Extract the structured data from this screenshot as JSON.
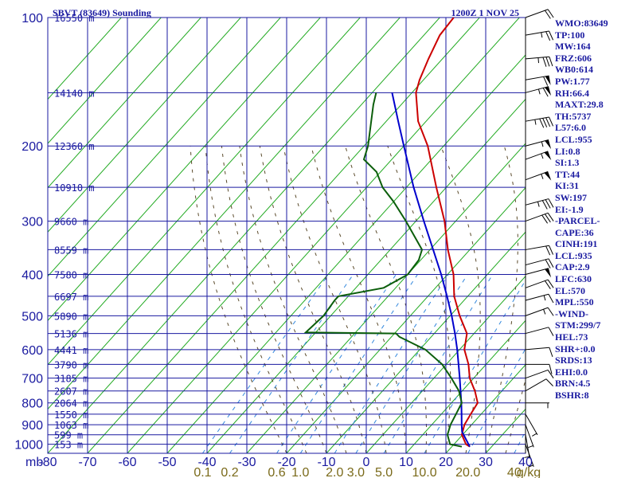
{
  "header": {
    "station": "SBVT (83649) Sounding",
    "time": "1200Z  1 NOV 25"
  },
  "colors": {
    "axes": "#1a1aa0",
    "temperature": "#cc0000",
    "dewpoint": "#0b5e0b",
    "parcel": "#0000cc",
    "dry_adiabat": "#22aa22",
    "isotherm": "#22aa22",
    "moist_adiabat": "#5a4a2a",
    "mixing_ratio": "#3388dd",
    "wind": "#000000"
  },
  "chart_data": {
    "type": "skew-t",
    "title": "SBVT (83649) Sounding",
    "valid_time": "1200Z  1 NOV 25",
    "xlabel": "mb",
    "pressure_levels": [
      100,
      200,
      300,
      400,
      500,
      600,
      700,
      800,
      900,
      1000
    ],
    "pressure_labels": [
      "100",
      "200",
      "300",
      "400",
      "500",
      "600",
      "700",
      "800",
      "900",
      "1000"
    ],
    "height_labels": [
      {
        "p": 100,
        "text": "16550 m"
      },
      {
        "p": 150,
        "text": "14140 m"
      },
      {
        "p": 200,
        "text": "12360 m"
      },
      {
        "p": 250,
        "text": "10910 m"
      },
      {
        "p": 300,
        "text": "9660 m"
      },
      {
        "p": 350,
        "text": "8559 m"
      },
      {
        "p": 400,
        "text": "7580 m"
      },
      {
        "p": 450,
        "text": "6697 m"
      },
      {
        "p": 500,
        "text": "5890 m"
      },
      {
        "p": 550,
        "text": "5136 m"
      },
      {
        "p": 600,
        "text": "4441 m"
      },
      {
        "p": 650,
        "text": "3790 m"
      },
      {
        "p": 700,
        "text": "3185 m"
      },
      {
        "p": 750,
        "text": "2607 m"
      },
      {
        "p": 800,
        "text": "2064 m"
      },
      {
        "p": 850,
        "text": "1550 m"
      },
      {
        "p": 900,
        "text": "1063 m"
      },
      {
        "p": 950,
        "text": "599 m"
      },
      {
        "p": 1000,
        "text": "153 m"
      }
    ],
    "temperature_ticks": [
      -80,
      -70,
      -60,
      -50,
      -40,
      -30,
      -20,
      -10,
      0,
      10,
      20,
      30,
      40
    ],
    "temperature_tick_labels": [
      "-80",
      "-70",
      "-60",
      "-50",
      "-40",
      "-30",
      "-20",
      "-10",
      "0",
      "10",
      "20",
      "30",
      "40"
    ],
    "mixing_ratio_labels": [
      {
        "text": "0.1",
        "w": 0.1
      },
      {
        "text": "0.2",
        "w": 0.2
      },
      {
        "text": "0.6",
        "w": 0.6
      },
      {
        "text": "1.0",
        "w": 1.0
      },
      {
        "text": "2.0",
        "w": 2.0
      },
      {
        "text": "3.0",
        "w": 3.0
      },
      {
        "text": "5.0",
        "w": 5.0
      },
      {
        "text": "10.0",
        "w": 10.0
      },
      {
        "text": "20.0",
        "w": 20.0
      },
      {
        "text": "40",
        "w": 40.0
      },
      {
        "text": "g/kg",
        "w": 80.0
      }
    ],
    "temperature_profile": [
      {
        "p": 1013,
        "t": 24.5
      },
      {
        "p": 1000,
        "t": 23.0
      },
      {
        "p": 950,
        "t": 19.8
      },
      {
        "p": 900,
        "t": 18.2
      },
      {
        "p": 850,
        "t": 17.4
      },
      {
        "p": 800,
        "t": 16.6
      },
      {
        "p": 750,
        "t": 13.2
      },
      {
        "p": 700,
        "t": 9.0
      },
      {
        "p": 650,
        "t": 5.6
      },
      {
        "p": 600,
        "t": 1.2
      },
      {
        "p": 550,
        "t": -1.8
      },
      {
        "p": 500,
        "t": -7.6
      },
      {
        "p": 450,
        "t": -13.4
      },
      {
        "p": 400,
        "t": -18.5
      },
      {
        "p": 350,
        "t": -25.5
      },
      {
        "p": 300,
        "t": -32.8
      },
      {
        "p": 250,
        "t": -42.5
      },
      {
        "p": 200,
        "t": -54.0
      },
      {
        "p": 175,
        "t": -62.0
      },
      {
        "p": 150,
        "t": -69.0
      },
      {
        "p": 140,
        "t": -71.0
      },
      {
        "p": 125,
        "t": -73.5
      },
      {
        "p": 110,
        "t": -76.0
      },
      {
        "p": 100,
        "t": -76.5
      }
    ],
    "dewpoint_profile": [
      {
        "p": 1013,
        "td": 22.5
      },
      {
        "p": 1000,
        "td": 19.0
      },
      {
        "p": 950,
        "td": 16.2
      },
      {
        "p": 900,
        "td": 14.7
      },
      {
        "p": 850,
        "td": 13.7
      },
      {
        "p": 800,
        "td": 12.6
      },
      {
        "p": 750,
        "td": 9.2
      },
      {
        "p": 700,
        "td": 4.4
      },
      {
        "p": 650,
        "td": -1.0
      },
      {
        "p": 600,
        "td": -8.6
      },
      {
        "p": 560,
        "td": -18.0
      },
      {
        "p": 550,
        "td": -19.6
      },
      {
        "p": 547,
        "td": -42.5
      },
      {
        "p": 500,
        "td": -41.8
      },
      {
        "p": 460,
        "td": -42.5
      },
      {
        "p": 450,
        "td": -42.5
      },
      {
        "p": 430,
        "td": -33.0
      },
      {
        "p": 400,
        "td": -30.0
      },
      {
        "p": 370,
        "td": -30.5
      },
      {
        "p": 350,
        "td": -32.0
      },
      {
        "p": 300,
        "td": -42.5
      },
      {
        "p": 270,
        "td": -50.0
      },
      {
        "p": 250,
        "td": -56.0
      },
      {
        "p": 230,
        "td": -61.0
      },
      {
        "p": 215,
        "td": -67.0
      },
      {
        "p": 200,
        "td": -69.0
      },
      {
        "p": 160,
        "td": -77.0
      },
      {
        "p": 150,
        "td": -79.0
      }
    ],
    "parcel_profile": [
      {
        "p": 1013,
        "t": 24.5
      },
      {
        "p": 935,
        "t": 19.2
      },
      {
        "p": 900,
        "t": 17.5
      },
      {
        "p": 850,
        "t": 15.1
      },
      {
        "p": 800,
        "t": 12.5
      },
      {
        "p": 750,
        "t": 9.6
      },
      {
        "p": 700,
        "t": 6.5
      },
      {
        "p": 650,
        "t": 3.1
      },
      {
        "p": 600,
        "t": -0.6
      },
      {
        "p": 550,
        "t": -4.8
      },
      {
        "p": 500,
        "t": -9.6
      },
      {
        "p": 450,
        "t": -15.2
      },
      {
        "p": 400,
        "t": -21.6
      },
      {
        "p": 350,
        "t": -29.2
      },
      {
        "p": 300,
        "t": -38.0
      },
      {
        "p": 250,
        "t": -48.2
      },
      {
        "p": 200,
        "t": -60.0
      },
      {
        "p": 175,
        "t": -67.0
      },
      {
        "p": 150,
        "t": -75.0
      }
    ],
    "winds": [
      {
        "p": 100,
        "dir": 70,
        "spd": 20
      },
      {
        "p": 110,
        "dir": 80,
        "spd": 25
      },
      {
        "p": 125,
        "dir": 85,
        "spd": 35
      },
      {
        "p": 140,
        "dir": 80,
        "spd": 60
      },
      {
        "p": 150,
        "dir": 75,
        "spd": 65
      },
      {
        "p": 175,
        "dir": 80,
        "spd": 45
      },
      {
        "p": 200,
        "dir": 75,
        "spd": 55
      },
      {
        "p": 215,
        "dir": 70,
        "spd": 55
      },
      {
        "p": 240,
        "dir": 70,
        "spd": 55
      },
      {
        "p": 275,
        "dir": 75,
        "spd": 35
      },
      {
        "p": 300,
        "dir": 70,
        "spd": 30
      },
      {
        "p": 350,
        "dir": 80,
        "spd": 20
      },
      {
        "p": 380,
        "dir": 75,
        "spd": 20
      },
      {
        "p": 400,
        "dir": 75,
        "spd": 50
      },
      {
        "p": 430,
        "dir": 70,
        "spd": 20
      },
      {
        "p": 460,
        "dir": 75,
        "spd": 15
      },
      {
        "p": 500,
        "dir": 70,
        "spd": 15
      },
      {
        "p": 550,
        "dir": 75,
        "spd": 10
      },
      {
        "p": 600,
        "dir": 85,
        "spd": 10
      },
      {
        "p": 650,
        "dir": 90,
        "spd": 10
      },
      {
        "p": 700,
        "dir": 70,
        "spd": 10
      },
      {
        "p": 750,
        "dir": 60,
        "spd": 10
      },
      {
        "p": 800,
        "dir": 90,
        "spd": 5
      },
      {
        "p": 850,
        "dir": 150,
        "spd": 5
      },
      {
        "p": 900,
        "dir": 160,
        "spd": 5
      },
      {
        "p": 950,
        "dir": 170,
        "spd": 5
      },
      {
        "p": 1000,
        "dir": 160,
        "spd": 5
      }
    ],
    "grid": true
  },
  "indices": [
    "WMO:83649",
    "TP:100",
    "MW:164",
    "FRZ:606",
    "WB0:614",
    "PW:1.77",
    "RH:66.4",
    "MAXT:29.8",
    "TH:5737",
    "L57:6.0",
    "LCL:955",
    "LI:0.8",
    "SI:1.3",
    "TT:44",
    "KI:31",
    "SW:197",
    "EI:-1.9",
    "-PARCEL-",
    "CAPE:36",
    "CINH:191",
    "LCL:935",
    "CAP:2.9",
    "LFC:630",
    "EL:570",
    "MPL:550",
    "-WIND-",
    "STM:299/7",
    "HEL:73",
    "SHR+:0.0",
    "SRDS:13",
    "EHI:0.0",
    "BRN:4.5",
    "BSHR:8"
  ]
}
